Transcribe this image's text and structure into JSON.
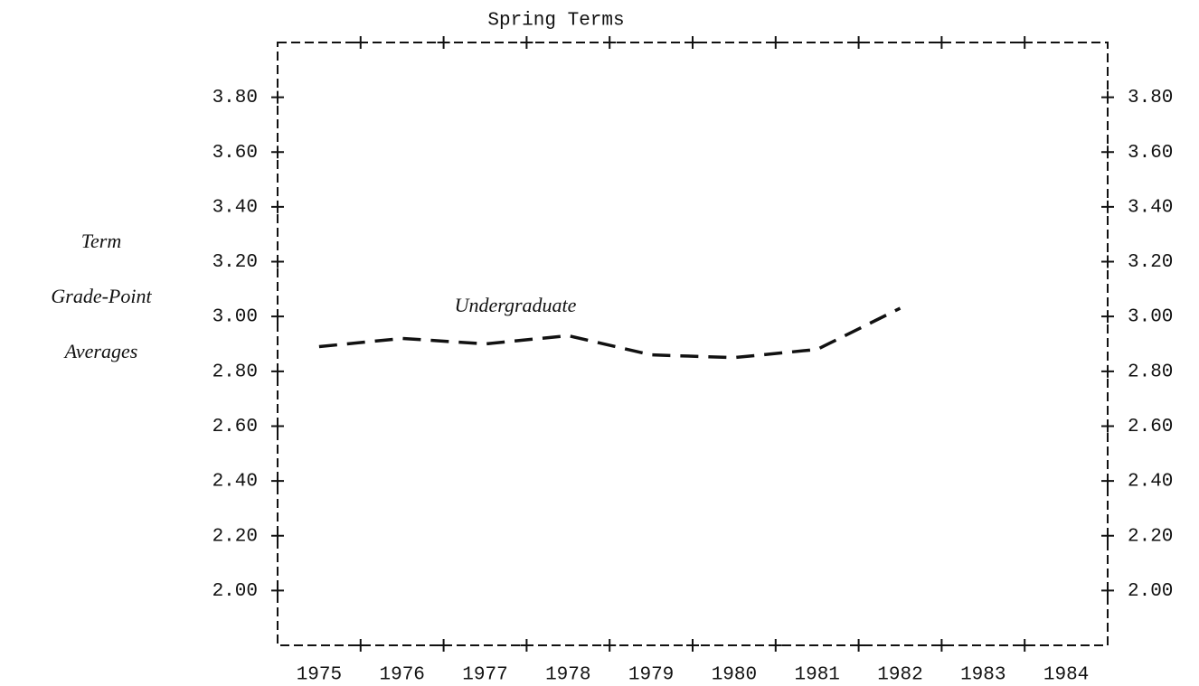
{
  "chart_data": {
    "type": "line",
    "title": "Spring Terms",
    "y_label_lines": [
      "Term",
      "Grade-Point",
      "Averages"
    ],
    "categories": [
      "1975",
      "1976",
      "1977",
      "1978",
      "1979",
      "1980",
      "1981",
      "1982",
      "1983",
      "1984"
    ],
    "series": [
      {
        "name": "Undergraduate",
        "color": "#111111",
        "values": [
          2.89,
          2.92,
          2.9,
          2.93,
          2.86,
          2.85,
          2.88,
          3.03,
          null,
          null
        ]
      }
    ],
    "ylim": [
      1.8,
      4.0
    ],
    "yticks": [
      {
        "value": 2.0,
        "label": "2.00"
      },
      {
        "value": 2.2,
        "label": "2.20"
      },
      {
        "value": 2.4,
        "label": "2.40"
      },
      {
        "value": 2.6,
        "label": "2.60"
      },
      {
        "value": 2.8,
        "label": "2.80"
      },
      {
        "value": 3.0,
        "label": "3.00"
      },
      {
        "value": 3.2,
        "label": "3.20"
      },
      {
        "value": 3.4,
        "label": "3.40"
      },
      {
        "value": 3.6,
        "label": "3.60"
      },
      {
        "value": 3.8,
        "label": "3.80"
      }
    ]
  }
}
